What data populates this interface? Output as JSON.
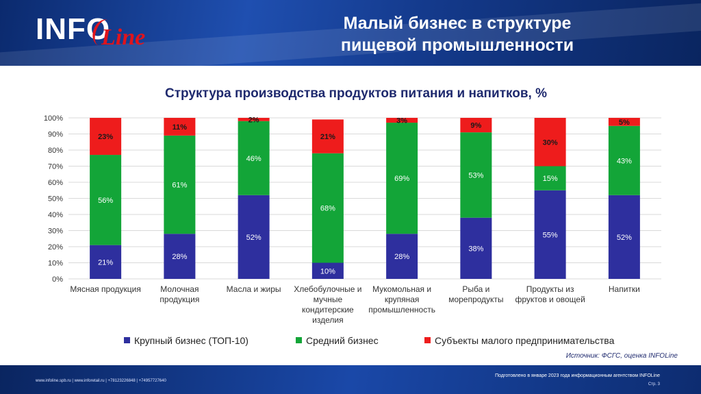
{
  "header": {
    "logo_main": "INFO",
    "logo_accent": "Line",
    "title_line1": "Малый бизнес в структуре",
    "title_line2": "пищевой промышленности"
  },
  "chart_data": {
    "type": "bar",
    "stacked": true,
    "title": "Структура производства продуктов питания и напитков, %",
    "categories": [
      [
        "Мясная продукция"
      ],
      [
        "Молочная",
        "продукция"
      ],
      [
        "Масла и жиры"
      ],
      [
        "Хлебобулочные и",
        "мучные",
        "кондитерские",
        "изделия"
      ],
      [
        "Мукомольная и",
        "крупяная",
        "промышленность"
      ],
      [
        "Рыба и",
        "морепродукты"
      ],
      [
        "Продукты из",
        "фруктов и овощей"
      ],
      [
        "Напитки"
      ]
    ],
    "series": [
      {
        "name": "Крупный бизнес (ТОП-10)",
        "color": "#2e2f9e",
        "values": [
          21,
          28,
          52,
          10,
          28,
          38,
          55,
          52
        ]
      },
      {
        "name": "Средний бизнес",
        "color": "#13a538",
        "values": [
          56,
          61,
          46,
          68,
          69,
          53,
          15,
          43
        ]
      },
      {
        "name": "Субъекты малого предпринимательства",
        "color": "#ee1c1c",
        "values": [
          23,
          11,
          2,
          21,
          3,
          9,
          30,
          5
        ]
      }
    ],
    "ylim": [
      0,
      100
    ],
    "yticks": [
      "0%",
      "10%",
      "20%",
      "30%",
      "40%",
      "50%",
      "60%",
      "70%",
      "80%",
      "90%",
      "100%"
    ],
    "grid": true,
    "legend": "bottom"
  },
  "source": "Источник: ФСГС, оценка INFOLine",
  "footer": {
    "links": "www.infoline.spb.ru | www.inforetail.ru | +78123226848 | +74957727640",
    "prepared": "Подготовлено в январе 2023 года информационным агентством INFOLine",
    "page": "Стр. 3"
  }
}
